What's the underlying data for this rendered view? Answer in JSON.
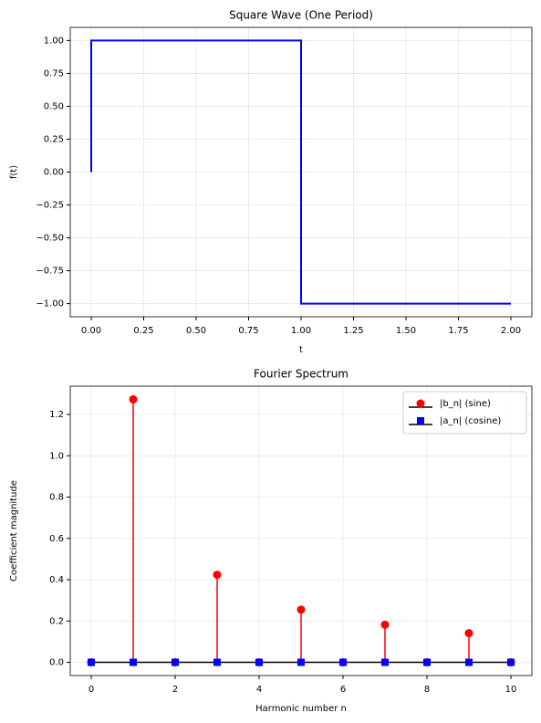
{
  "chart_data": [
    {
      "type": "line",
      "title": "Square Wave (One Period)",
      "xlabel": "t",
      "ylabel": "f(t)",
      "x": [
        0,
        0,
        1,
        1,
        2
      ],
      "series": [
        {
          "name": "f(t)",
          "color": "#0000ff",
          "values": [
            0,
            1,
            1,
            -1,
            -1
          ]
        }
      ],
      "xlim": [
        -0.1,
        2.1
      ],
      "xticks": [
        {
          "value": 0,
          "label": "0.00"
        },
        {
          "value": 0.25,
          "label": "0.25"
        },
        {
          "value": 0.5,
          "label": "0.50"
        },
        {
          "value": 0.75,
          "label": "0.75"
        },
        {
          "value": 1,
          "label": "1.00"
        },
        {
          "value": 1.25,
          "label": "1.25"
        },
        {
          "value": 1.5,
          "label": "1.50"
        },
        {
          "value": 1.75,
          "label": "1.75"
        },
        {
          "value": 2,
          "label": "2.00"
        }
      ],
      "ylim": [
        -1.1,
        1.1
      ],
      "yticks": [
        {
          "value": -1,
          "label": "−1.00"
        },
        {
          "value": -0.75,
          "label": "−0.75"
        },
        {
          "value": -0.5,
          "label": "−0.50"
        },
        {
          "value": -0.25,
          "label": "−0.25"
        },
        {
          "value": 0,
          "label": "0.00"
        },
        {
          "value": 0.25,
          "label": "0.25"
        },
        {
          "value": 0.5,
          "label": "0.50"
        },
        {
          "value": 0.75,
          "label": "0.75"
        },
        {
          "value": 1,
          "label": "1.00"
        }
      ],
      "grid": true,
      "legend": false
    },
    {
      "type": "stem",
      "title": "Fourier Spectrum",
      "xlabel": "Harmonic number n",
      "ylabel": "Coefficient magnitude",
      "x": [
        0,
        1,
        2,
        3,
        4,
        5,
        6,
        7,
        8,
        9,
        10
      ],
      "series": [
        {
          "name": "|b_n| (sine)",
          "color": "#ff0000",
          "marker": "circle",
          "values": [
            0,
            1.273,
            0,
            0.424,
            0,
            0.255,
            0,
            0.182,
            0,
            0.141,
            0
          ]
        },
        {
          "name": "|a_n| (cosine)",
          "color": "#0000ff",
          "marker": "square",
          "values": [
            0,
            0,
            0,
            0,
            0,
            0,
            0,
            0,
            0,
            0,
            0
          ]
        }
      ],
      "baseline_color": "#000000",
      "xlim": [
        -0.5,
        10.5
      ],
      "xticks": [
        0,
        2,
        4,
        6,
        8,
        10
      ],
      "ylim": [
        -0.064,
        1.337
      ],
      "yticks": [
        {
          "value": 0,
          "label": "0.0"
        },
        {
          "value": 0.2,
          "label": "0.2"
        },
        {
          "value": 0.4,
          "label": "0.4"
        },
        {
          "value": 0.6,
          "label": "0.6"
        },
        {
          "value": 0.8,
          "label": "0.8"
        },
        {
          "value": 1.0,
          "label": "1.0"
        },
        {
          "value": 1.2,
          "label": "1.2"
        }
      ],
      "grid": true,
      "legend": "upper right"
    }
  ]
}
